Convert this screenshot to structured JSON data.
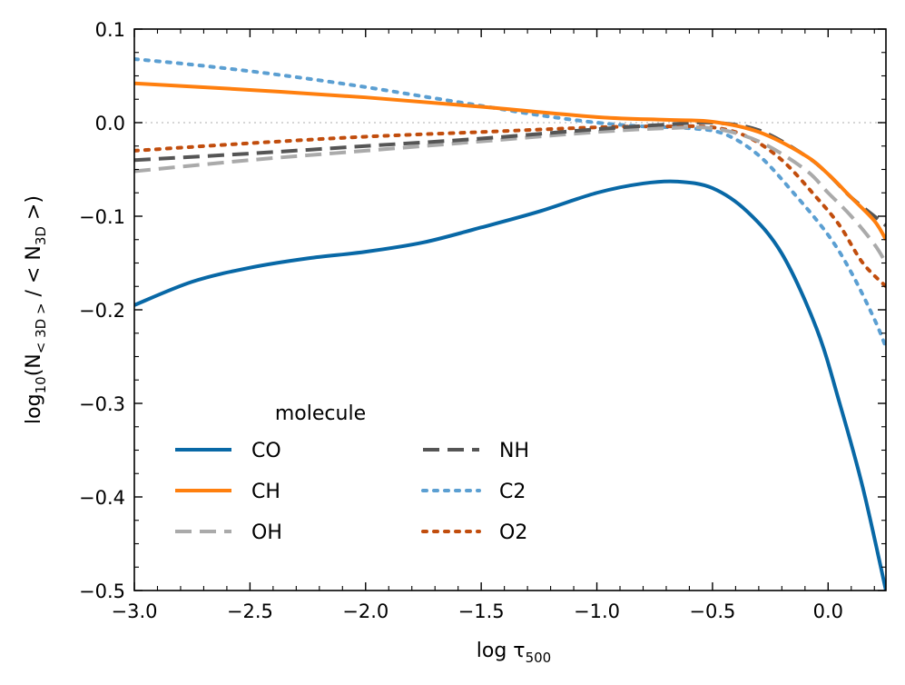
{
  "chart_data": {
    "type": "line",
    "xlabel": {
      "main": "log τ",
      "sub": "500"
    },
    "ylabel": {
      "prefix": "log",
      "prefix_sub": "10",
      "open": "(N",
      "num_sub": "< 3D >",
      "mid": " / < N",
      "den_sub": "3D",
      "close": " >)"
    },
    "xlim": [
      -3.0,
      0.25
    ],
    "ylim": [
      -0.5,
      0.1
    ],
    "xticks": [
      -3.0,
      -2.5,
      -2.0,
      -1.5,
      -1.0,
      -0.5,
      0.0
    ],
    "xtick_labels": [
      "−3.0",
      "−2.5",
      "−2.0",
      "−1.5",
      "−1.0",
      "−0.5",
      "0.0"
    ],
    "yticks": [
      0.1,
      0.0,
      -0.1,
      -0.2,
      -0.3,
      -0.4,
      -0.5
    ],
    "ytick_labels": [
      "0.1",
      "0.0",
      "−0.1",
      "−0.2",
      "−0.3",
      "−0.4",
      "−0.5"
    ],
    "reference_line": {
      "y": 0.0,
      "color": "#c8c8c8",
      "style": "dotted"
    },
    "legend": {
      "title": "molecule",
      "placement": "lower-left",
      "columns": 2
    },
    "series": [
      {
        "name": "CO",
        "color": "#0868a6",
        "style": "solid",
        "x": [
          -3.0,
          -2.75,
          -2.5,
          -2.25,
          -2.0,
          -1.75,
          -1.5,
          -1.25,
          -1.0,
          -0.8,
          -0.65,
          -0.5,
          -0.35,
          -0.2,
          -0.05,
          0.05,
          0.15,
          0.25
        ],
        "y": [
          -0.195,
          -0.17,
          -0.155,
          -0.145,
          -0.138,
          -0.128,
          -0.112,
          -0.095,
          -0.075,
          -0.065,
          -0.063,
          -0.07,
          -0.095,
          -0.14,
          -0.22,
          -0.3,
          -0.39,
          -0.5
        ]
      },
      {
        "name": "CH",
        "color": "#ff7f0e",
        "style": "solid",
        "x": [
          -3.0,
          -2.5,
          -2.0,
          -1.5,
          -1.0,
          -0.7,
          -0.5,
          -0.3,
          -0.1,
          0.0,
          0.1,
          0.2,
          0.25
        ],
        "y": [
          0.042,
          0.035,
          0.027,
          0.017,
          0.006,
          0.003,
          0.001,
          -0.01,
          -0.035,
          -0.055,
          -0.08,
          -0.105,
          -0.125
        ]
      },
      {
        "name": "OH",
        "color": "#aaaaaa",
        "style": "dashed",
        "x": [
          -3.0,
          -2.5,
          -2.0,
          -1.5,
          -1.0,
          -0.7,
          -0.5,
          -0.3,
          -0.1,
          0.0,
          0.1,
          0.2,
          0.25
        ],
        "y": [
          -0.052,
          -0.04,
          -0.03,
          -0.02,
          -0.01,
          -0.006,
          -0.006,
          -0.02,
          -0.05,
          -0.075,
          -0.1,
          -0.13,
          -0.15
        ]
      },
      {
        "name": "NH",
        "color": "#555555",
        "style": "dashed",
        "x": [
          -3.0,
          -2.5,
          -2.0,
          -1.5,
          -1.0,
          -0.7,
          -0.5,
          -0.3,
          -0.1,
          0.0,
          0.1,
          0.2,
          0.25
        ],
        "y": [
          -0.04,
          -0.033,
          -0.025,
          -0.017,
          -0.007,
          -0.002,
          0.0,
          -0.008,
          -0.035,
          -0.055,
          -0.08,
          -0.1,
          -0.11
        ]
      },
      {
        "name": "C2",
        "color": "#5b9fd2",
        "style": "dotted",
        "x": [
          -3.0,
          -2.75,
          -2.5,
          -2.25,
          -2.0,
          -1.75,
          -1.5,
          -1.25,
          -1.0,
          -0.8,
          -0.6,
          -0.45,
          -0.3,
          -0.15,
          0.0,
          0.1,
          0.2,
          0.25
        ],
        "y": [
          0.068,
          0.062,
          0.055,
          0.047,
          0.038,
          0.028,
          0.018,
          0.008,
          0.0,
          -0.004,
          -0.006,
          -0.012,
          -0.035,
          -0.075,
          -0.12,
          -0.16,
          -0.21,
          -0.24
        ]
      },
      {
        "name": "O2",
        "color": "#c14d0d",
        "style": "dotted",
        "x": [
          -3.0,
          -2.5,
          -2.0,
          -1.5,
          -1.0,
          -0.7,
          -0.5,
          -0.35,
          -0.2,
          -0.05,
          0.05,
          0.15,
          0.25
        ],
        "y": [
          -0.03,
          -0.022,
          -0.015,
          -0.01,
          -0.005,
          -0.004,
          -0.005,
          -0.015,
          -0.04,
          -0.08,
          -0.11,
          -0.15,
          -0.175
        ]
      }
    ]
  }
}
